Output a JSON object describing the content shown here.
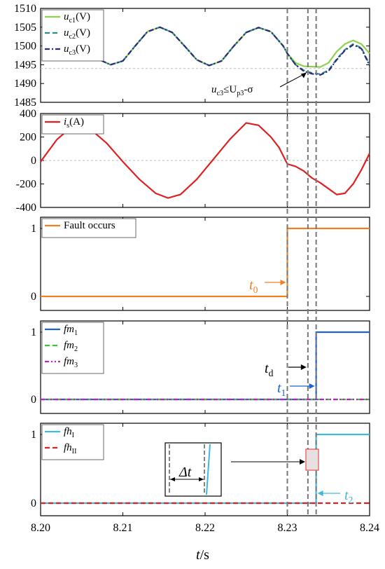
{
  "chart_data": [
    {
      "type": "line",
      "panel": "capacitor-voltage",
      "ylim": [
        1485,
        1510
      ],
      "y_ticks": [
        "1485",
        "1490",
        "1495",
        "1500",
        "1505",
        "1510"
      ],
      "xlim": [
        8.2,
        8.24
      ],
      "reference_line_y": 1494,
      "series": [
        {
          "name": "uc1(V)",
          "label_main": "u",
          "label_sub": "c1",
          "label_unit": "(V)",
          "color": "#8fd14f",
          "style": "solid",
          "x": [
            8.2025,
            8.204,
            8.2055,
            8.207,
            8.2085,
            8.21,
            8.2115,
            8.213,
            8.2145,
            8.216,
            8.2175,
            8.219,
            8.2205,
            8.222,
            8.2235,
            8.225,
            8.2265,
            8.228,
            8.2295,
            8.23,
            8.231,
            8.232,
            8.233,
            8.234,
            8.235,
            8.236,
            8.237,
            8.238,
            8.239,
            8.24
          ],
          "y": [
            1504.8,
            1503.5,
            1500.0,
            1496.5,
            1495.0,
            1496.0,
            1500.0,
            1503.8,
            1505.0,
            1503.6,
            1500.0,
            1496.3,
            1494.8,
            1496.0,
            1500.0,
            1503.6,
            1504.9,
            1503.8,
            1500.0,
            1498.0,
            1495.5,
            1494.6,
            1494.5,
            1494.4,
            1495.5,
            1498.5,
            1500.5,
            1501.5,
            1500.5,
            1498.0
          ]
        },
        {
          "name": "uc2(V)",
          "label_main": "u",
          "label_sub": "c2",
          "label_unit": "(V)",
          "color": "#2e8b8b",
          "style": "dash",
          "x": [
            8.2025,
            8.204,
            8.2055,
            8.207,
            8.2085,
            8.21,
            8.2115,
            8.213,
            8.2145,
            8.216,
            8.2175,
            8.219,
            8.2205,
            8.222,
            8.2235,
            8.225,
            8.2265,
            8.228,
            8.2295,
            8.23,
            8.231,
            8.232,
            8.233,
            8.234,
            8.235,
            8.236,
            8.237,
            8.238,
            8.239,
            8.24
          ],
          "y": [
            1504.8,
            1503.5,
            1500.0,
            1496.5,
            1495.0,
            1496.0,
            1500.0,
            1503.8,
            1505.0,
            1503.6,
            1500.0,
            1496.3,
            1494.8,
            1496.0,
            1500.0,
            1503.6,
            1504.9,
            1503.8,
            1500.0,
            1498.0,
            1495.0,
            1493.5,
            1492.8,
            1492.5,
            1493.5,
            1496.5,
            1499.0,
            1500.5,
            1499.5,
            1495.0
          ]
        },
        {
          "name": "uc3(V)",
          "label_main": "u",
          "label_sub": "c3",
          "label_unit": "(V)",
          "color": "#2b2b7a",
          "style": "dashdot",
          "x": [
            8.2025,
            8.204,
            8.2055,
            8.207,
            8.2085,
            8.21,
            8.2115,
            8.213,
            8.2145,
            8.216,
            8.2175,
            8.219,
            8.2205,
            8.222,
            8.2235,
            8.225,
            8.2265,
            8.228,
            8.2295,
            8.23,
            8.231,
            8.232,
            8.233,
            8.234,
            8.235,
            8.236,
            8.237,
            8.238,
            8.239,
            8.24
          ],
          "y": [
            1504.8,
            1503.5,
            1500.0,
            1496.5,
            1495.0,
            1496.0,
            1500.0,
            1503.8,
            1505.0,
            1503.6,
            1500.0,
            1496.3,
            1494.8,
            1496.0,
            1500.0,
            1503.6,
            1504.9,
            1503.8,
            1500.0,
            1498.0,
            1495.0,
            1493.3,
            1492.6,
            1492.3,
            1493.3,
            1496.3,
            1498.8,
            1500.3,
            1499.3,
            1494.8
          ]
        }
      ],
      "annotation": {
        "main": "u",
        "sub1": "c3",
        "mid": "≤U",
        "sub2": "p3",
        "tail": "-σ",
        "x_data": 8.2325,
        "y_data": 1493.3
      }
    },
    {
      "type": "line",
      "panel": "current",
      "ylim": [
        -400,
        400
      ],
      "y_ticks": [
        "400",
        "200",
        "0",
        "-200",
        "-400"
      ],
      "reference_line_y": 0,
      "series": [
        {
          "name": "is(A)",
          "label_main": "i",
          "label_sub": "s",
          "label_unit": "(A)",
          "color": "#e02020",
          "style": "solid",
          "x": [
            8.2,
            8.202,
            8.204,
            8.206,
            8.208,
            8.21,
            8.212,
            8.214,
            8.2155,
            8.217,
            8.219,
            8.221,
            8.223,
            8.225,
            8.2265,
            8.228,
            8.229,
            8.23,
            8.231,
            8.232,
            8.233,
            8.234,
            8.235,
            8.236,
            8.237,
            8.238,
            8.239,
            8.24
          ],
          "y": [
            -10,
            180,
            300,
            270,
            150,
            -10,
            -160,
            -280,
            -320,
            -290,
            -160,
            10,
            180,
            320,
            300,
            200,
            110,
            -30,
            -50,
            -90,
            -150,
            -190,
            -240,
            -290,
            -280,
            -200,
            -80,
            60
          ]
        }
      ]
    },
    {
      "type": "line",
      "panel": "fault-flag",
      "ylim": [
        0,
        1
      ],
      "y_ticks": [
        "0",
        "1"
      ],
      "series": [
        {
          "name": "Fault occurs",
          "color": "#f08020",
          "style": "solid",
          "x": [
            8.2,
            8.23,
            8.23,
            8.24
          ],
          "y": [
            0,
            0,
            1,
            1
          ]
        }
      ],
      "marker_label": {
        "main": "t",
        "sub": "0",
        "color": "#f08020"
      }
    },
    {
      "type": "line",
      "panel": "fm-flags",
      "ylim": [
        0,
        1
      ],
      "y_ticks": [
        "0",
        "1"
      ],
      "series": [
        {
          "name": "fm1",
          "label_main": "fm",
          "label_sub": "1",
          "color": "#2060d0",
          "style": "solid",
          "x": [
            8.2,
            8.2335,
            8.2335,
            8.24
          ],
          "y": [
            0,
            0,
            1,
            1
          ]
        },
        {
          "name": "fm2",
          "label_main": "fm",
          "label_sub": "2",
          "color": "#40c040",
          "style": "dash",
          "x": [
            8.2,
            8.24
          ],
          "y": [
            0,
            0
          ]
        },
        {
          "name": "fm3",
          "label_main": "fm",
          "label_sub": "3",
          "color": "#c020c0",
          "style": "dashdotdot",
          "x": [
            8.2,
            8.24
          ],
          "y": [
            0,
            0
          ]
        }
      ],
      "labels": [
        {
          "main": "t",
          "sub": "d",
          "color": "#000000"
        },
        {
          "main": "t",
          "sub": "1",
          "color": "#2060d0"
        }
      ]
    },
    {
      "type": "line",
      "panel": "fh-flags",
      "ylim": [
        0,
        1
      ],
      "y_ticks": [
        "0",
        "1"
      ],
      "series": [
        {
          "name": "fhI",
          "label_main": "fh",
          "label_sub": "I",
          "color": "#40b8d8",
          "style": "solid",
          "x": [
            8.2,
            8.2335,
            8.2335,
            8.24
          ],
          "y": [
            0,
            0,
            1,
            1
          ]
        },
        {
          "name": "fhII",
          "label_main": "fh",
          "label_sub": "II",
          "color": "#e02020",
          "style": "dash",
          "x": [
            8.2,
            8.24
          ],
          "y": [
            0,
            0
          ]
        }
      ],
      "labels": [
        {
          "main": "t",
          "sub": "2",
          "color": "#40b8d8"
        }
      ],
      "inset_label": "Δt"
    }
  ],
  "x_axis": {
    "ticks": [
      "8.20",
      "8.21",
      "8.22",
      "8.23",
      "8.24"
    ],
    "tick_values": [
      8.2,
      8.21,
      8.22,
      8.23,
      8.24
    ],
    "label_main": "t",
    "label_unit": "/s"
  },
  "vertical_markers": [
    8.23,
    8.2325,
    8.2335
  ]
}
